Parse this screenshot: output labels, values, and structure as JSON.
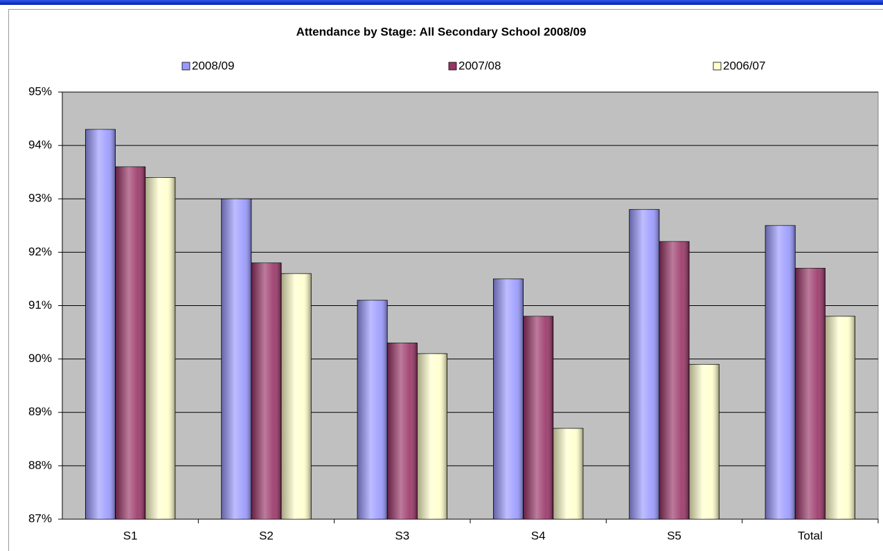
{
  "chart_data": {
    "type": "bar",
    "title": "Attendance by Stage: All Secondary School 2008/09",
    "categories": [
      "S1",
      "S2",
      "S3",
      "S4",
      "S5",
      "Total"
    ],
    "series": [
      {
        "name": "2008/09",
        "color": "#9999ff",
        "values": [
          94.3,
          93.0,
          91.1,
          91.5,
          92.8,
          92.5
        ]
      },
      {
        "name": "2007/08",
        "color": "#993366",
        "values": [
          93.6,
          91.8,
          90.3,
          90.8,
          92.2,
          91.7
        ]
      },
      {
        "name": "2006/07",
        "color": "#ffffcc",
        "values": [
          93.4,
          91.6,
          90.1,
          88.7,
          89.9,
          90.8
        ]
      }
    ],
    "ylim": [
      87,
      95
    ],
    "yticks": [
      {
        "value": 87,
        "label": "87%"
      },
      {
        "value": 88,
        "label": "88%"
      },
      {
        "value": 89,
        "label": "89%"
      },
      {
        "value": 90,
        "label": "90%"
      },
      {
        "value": 91,
        "label": "91%"
      },
      {
        "value": 92,
        "label": "92%"
      },
      {
        "value": 93,
        "label": "93%"
      },
      {
        "value": 94,
        "label": "94%"
      },
      {
        "value": 95,
        "label": "95%"
      }
    ],
    "grid": true,
    "legend": "top"
  }
}
